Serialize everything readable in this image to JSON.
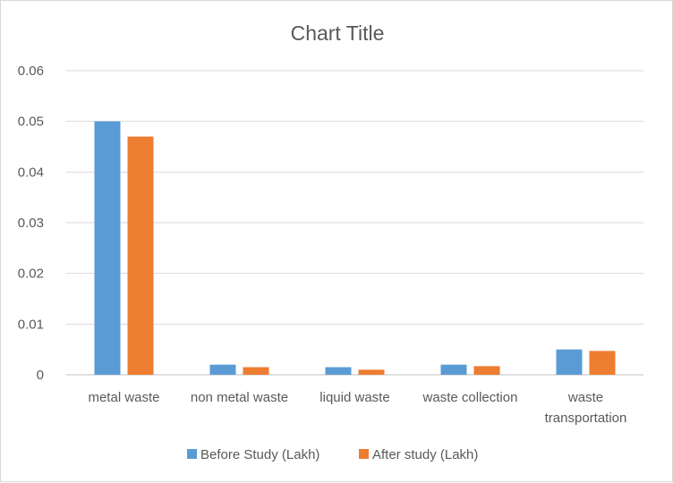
{
  "chart_data": {
    "type": "bar",
    "title": "Chart Title",
    "xlabel": "",
    "ylabel": "",
    "categories": [
      [
        "metal waste"
      ],
      [
        "non metal waste"
      ],
      [
        "liquid waste"
      ],
      [
        "waste collection"
      ],
      [
        "waste",
        "transportation"
      ]
    ],
    "series": [
      {
        "name": "Before Study (Lakh)",
        "color": "#5b9bd5",
        "values": [
          0.05,
          0.002,
          0.0015,
          0.002,
          0.005
        ]
      },
      {
        "name": "After study (Lakh)",
        "color": "#ed7d31",
        "values": [
          0.047,
          0.0015,
          0.001,
          0.0017,
          0.0047
        ]
      }
    ],
    "y_ticks": [
      "0",
      "0.01",
      "0.02",
      "0.03",
      "0.04",
      "0.05",
      "0.06"
    ],
    "ylim": [
      0,
      0.06
    ],
    "grid": true,
    "legend_position": "bottom"
  }
}
